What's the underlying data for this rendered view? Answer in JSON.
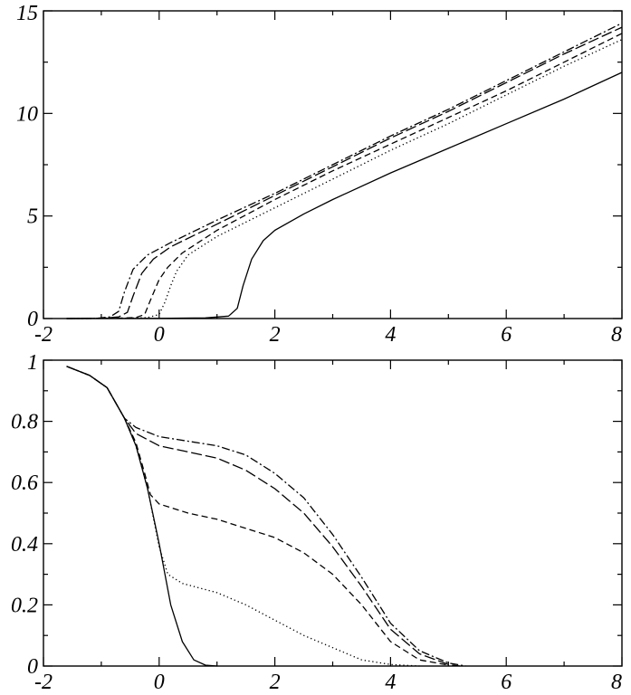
{
  "chart_data": [
    {
      "type": "line",
      "title": "",
      "xlabel": "",
      "ylabel": "",
      "xlim": [
        -2,
        8
      ],
      "ylim": [
        0,
        15
      ],
      "grid": false,
      "x_ticks": [
        "-2",
        "0",
        "2",
        "4",
        "6",
        "8"
      ],
      "y_ticks": [
        "0",
        "5",
        "10",
        "15"
      ],
      "series": [
        {
          "style": "solid",
          "points": [
            [
              -1.6,
              0
            ],
            [
              0,
              0.01
            ],
            [
              0.8,
              0.03
            ],
            [
              1.2,
              0.12
            ],
            [
              1.35,
              0.5
            ],
            [
              1.45,
              1.6
            ],
            [
              1.6,
              2.9
            ],
            [
              1.8,
              3.8
            ],
            [
              2,
              4.3
            ],
            [
              2.5,
              5.1
            ],
            [
              3,
              5.8
            ],
            [
              4,
              7.1
            ],
            [
              5,
              8.3
            ],
            [
              6,
              9.5
            ],
            [
              7,
              10.7
            ],
            [
              8,
              12.0
            ]
          ]
        },
        {
          "style": "dotted",
          "points": [
            [
              -1.6,
              0
            ],
            [
              -0.6,
              0.01
            ],
            [
              -0.2,
              0.05
            ],
            [
              0,
              0.2
            ],
            [
              0.1,
              0.8
            ],
            [
              0.2,
              1.6
            ],
            [
              0.3,
              2.3
            ],
            [
              0.5,
              3.1
            ],
            [
              1,
              4.0
            ],
            [
              2,
              5.4
            ],
            [
              3,
              6.8
            ],
            [
              4,
              8.2
            ],
            [
              5,
              9.5
            ],
            [
              6,
              10.9
            ],
            [
              7,
              12.3
            ],
            [
              8,
              13.6
            ]
          ]
        },
        {
          "style": "dashed",
          "points": [
            [
              -1.6,
              0
            ],
            [
              -0.8,
              0.01
            ],
            [
              -0.4,
              0.05
            ],
            [
              -0.25,
              0.2
            ],
            [
              -0.15,
              0.9
            ],
            [
              0,
              1.9
            ],
            [
              0.15,
              2.5
            ],
            [
              0.4,
              3.2
            ],
            [
              1,
              4.3
            ],
            [
              2,
              5.8
            ],
            [
              3,
              7.2
            ],
            [
              4,
              8.5
            ],
            [
              5,
              9.8
            ],
            [
              6,
              11.1
            ],
            [
              7,
              12.5
            ],
            [
              8,
              13.9
            ]
          ]
        },
        {
          "style": "long-dash",
          "points": [
            [
              -1.6,
              0
            ],
            [
              -1,
              0.01
            ],
            [
              -0.7,
              0.08
            ],
            [
              -0.55,
              0.3
            ],
            [
              -0.45,
              1.1
            ],
            [
              -0.3,
              2.2
            ],
            [
              -0.1,
              2.9
            ],
            [
              0.2,
              3.5
            ],
            [
              1,
              4.6
            ],
            [
              2,
              6.0
            ],
            [
              3,
              7.4
            ],
            [
              4,
              8.8
            ],
            [
              5,
              10.1
            ],
            [
              6,
              11.5
            ],
            [
              7,
              12.9
            ],
            [
              8,
              14.2
            ]
          ]
        },
        {
          "style": "dash-dot",
          "points": [
            [
              -1.6,
              0
            ],
            [
              -1.1,
              0.01
            ],
            [
              -0.85,
              0.08
            ],
            [
              -0.7,
              0.35
            ],
            [
              -0.6,
              1.3
            ],
            [
              -0.45,
              2.4
            ],
            [
              -0.2,
              3.1
            ],
            [
              0.2,
              3.7
            ],
            [
              1,
              4.8
            ],
            [
              2,
              6.1
            ],
            [
              3,
              7.5
            ],
            [
              4,
              8.9
            ],
            [
              5,
              10.2
            ],
            [
              6,
              11.6
            ],
            [
              7,
              13.0
            ],
            [
              8,
              14.4
            ]
          ]
        }
      ]
    },
    {
      "type": "line",
      "title": "",
      "xlabel": "",
      "ylabel": "",
      "xlim": [
        -2,
        8
      ],
      "ylim": [
        0,
        1
      ],
      "grid": false,
      "x_ticks": [
        "-2",
        "0",
        "2",
        "4",
        "6",
        "8"
      ],
      "y_ticks": [
        "0",
        "0.2",
        "0.4",
        "0.6",
        "0.8",
        "1"
      ],
      "series": [
        {
          "style": "solid",
          "points": [
            [
              -1.6,
              0.98
            ],
            [
              -1.2,
              0.95
            ],
            [
              -0.9,
              0.91
            ],
            [
              -0.6,
              0.81
            ],
            [
              -0.4,
              0.72
            ],
            [
              -0.2,
              0.58
            ],
            [
              0,
              0.4
            ],
            [
              0.2,
              0.2
            ],
            [
              0.4,
              0.08
            ],
            [
              0.6,
              0.02
            ],
            [
              0.8,
              0.003
            ],
            [
              1,
              0
            ]
          ]
        },
        {
          "style": "dotted",
          "points": [
            [
              -1.6,
              0.98
            ],
            [
              -1.2,
              0.95
            ],
            [
              -0.9,
              0.91
            ],
            [
              -0.6,
              0.81
            ],
            [
              -0.4,
              0.72
            ],
            [
              -0.2,
              0.58
            ],
            [
              0,
              0.39
            ],
            [
              0.15,
              0.3
            ],
            [
              0.4,
              0.27
            ],
            [
              1,
              0.24
            ],
            [
              1.5,
              0.2
            ],
            [
              2,
              0.15
            ],
            [
              2.5,
              0.1
            ],
            [
              3,
              0.06
            ],
            [
              3.5,
              0.02
            ],
            [
              4,
              0.005
            ],
            [
              4.5,
              0
            ]
          ]
        },
        {
          "style": "dashed",
          "points": [
            [
              -1.6,
              0.98
            ],
            [
              -1.2,
              0.95
            ],
            [
              -0.9,
              0.91
            ],
            [
              -0.6,
              0.81
            ],
            [
              -0.4,
              0.73
            ],
            [
              -0.25,
              0.63
            ],
            [
              -0.15,
              0.56
            ],
            [
              0,
              0.53
            ],
            [
              0.5,
              0.5
            ],
            [
              1,
              0.48
            ],
            [
              1.5,
              0.45
            ],
            [
              2,
              0.42
            ],
            [
              2.5,
              0.37
            ],
            [
              3,
              0.3
            ],
            [
              3.5,
              0.2
            ],
            [
              4,
              0.08
            ],
            [
              4.5,
              0.02
            ],
            [
              5,
              0.003
            ]
          ]
        },
        {
          "style": "long-dash",
          "points": [
            [
              -1.6,
              0.98
            ],
            [
              -1.2,
              0.95
            ],
            [
              -0.9,
              0.91
            ],
            [
              -0.6,
              0.81
            ],
            [
              -0.4,
              0.76
            ],
            [
              0,
              0.72
            ],
            [
              1,
              0.68
            ],
            [
              1.5,
              0.64
            ],
            [
              2,
              0.58
            ],
            [
              2.5,
              0.5
            ],
            [
              3,
              0.39
            ],
            [
              3.5,
              0.26
            ],
            [
              4,
              0.12
            ],
            [
              4.5,
              0.04
            ],
            [
              5,
              0.005
            ],
            [
              5.2,
              0
            ]
          ]
        },
        {
          "style": "dash-dot",
          "points": [
            [
              -1.6,
              0.98
            ],
            [
              -1.2,
              0.95
            ],
            [
              -0.9,
              0.91
            ],
            [
              -0.6,
              0.81
            ],
            [
              -0.4,
              0.78
            ],
            [
              0,
              0.75
            ],
            [
              1,
              0.72
            ],
            [
              1.5,
              0.69
            ],
            [
              2,
              0.63
            ],
            [
              2.5,
              0.55
            ],
            [
              3,
              0.43
            ],
            [
              3.5,
              0.29
            ],
            [
              4,
              0.14
            ],
            [
              4.5,
              0.05
            ],
            [
              5,
              0.01
            ],
            [
              5.3,
              0
            ]
          ]
        }
      ]
    }
  ]
}
